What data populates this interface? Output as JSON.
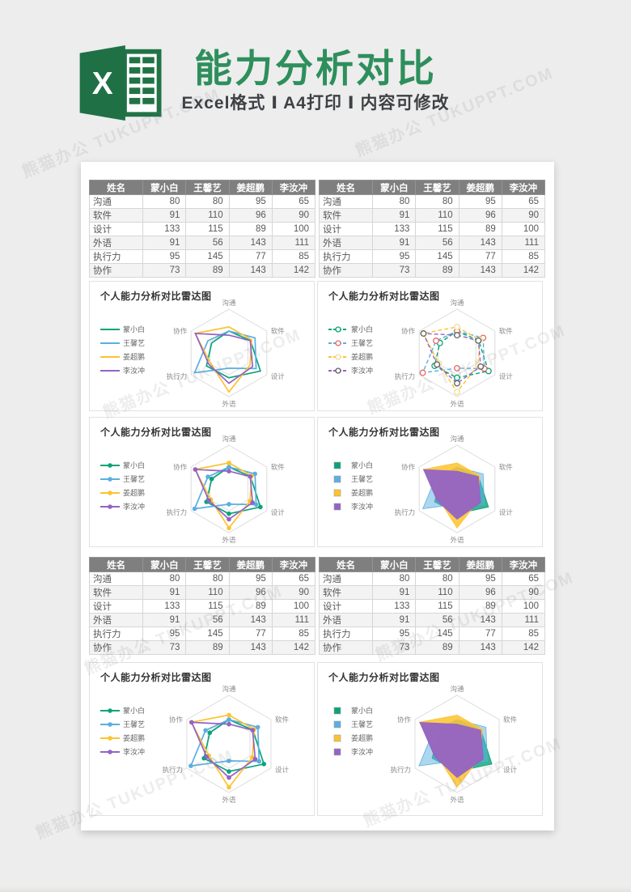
{
  "header": {
    "title": "能力分析对比",
    "subtitle": "Excel格式 Ⅰ A4打印 Ⅰ 内容可修改",
    "logo_letter": "X",
    "brand_green": "#2e8f5c",
    "excel_green": "#217346"
  },
  "watermark": {
    "text": "熊猫办公 TUKUPPT.COM"
  },
  "table": {
    "columns": [
      "姓名",
      "蒙小白",
      "王馨艺",
      "姜超鹏",
      "李汝冲"
    ],
    "rows": [
      {
        "label": "沟通",
        "values": [
          80,
          80,
          95,
          65
        ]
      },
      {
        "label": "软件",
        "values": [
          91,
          110,
          96,
          90
        ]
      },
      {
        "label": "设计",
        "values": [
          133,
          115,
          89,
          100
        ]
      },
      {
        "label": "外语",
        "values": [
          91,
          56,
          143,
          111
        ]
      },
      {
        "label": "执行力",
        "values": [
          95,
          145,
          77,
          85
        ]
      },
      {
        "label": "协作",
        "values": [
          73,
          89,
          143,
          142
        ]
      }
    ]
  },
  "chart_data": {
    "type": "radar",
    "title": "个人能力分析对比雷达图",
    "categories": [
      "沟通",
      "软件",
      "设计",
      "外语",
      "执行力",
      "协作"
    ],
    "series": [
      {
        "name": "蒙小白",
        "color": "#0aa37a",
        "marker_color": "#0aa37a",
        "fill_opacity": 0.8,
        "values": [
          80,
          91,
          133,
          91,
          95,
          73
        ]
      },
      {
        "name": "王馨艺",
        "color": "#5aafe0",
        "marker_color": "#e26b66",
        "fill_opacity": 0.5,
        "values": [
          80,
          110,
          115,
          56,
          145,
          89
        ]
      },
      {
        "name": "姜超鹏",
        "color": "#fdc32f",
        "marker_color": "#f3dd9a",
        "fill_opacity": 0.85,
        "values": [
          95,
          96,
          89,
          143,
          77,
          143
        ]
      },
      {
        "name": "李汝冲",
        "color": "#9463c5",
        "marker_color": "#5f5f5f",
        "fill_opacity": 0.95,
        "values": [
          65,
          90,
          100,
          111,
          85,
          142
        ]
      }
    ],
    "rmax": 160,
    "rings": [
      80,
      160
    ],
    "grid": "hexagonal rings, no spokes",
    "legend_position": "left",
    "panel_styles": [
      "line",
      "line-dashed-markers",
      "line-markers",
      "filled",
      "line-markers",
      "filled"
    ]
  }
}
